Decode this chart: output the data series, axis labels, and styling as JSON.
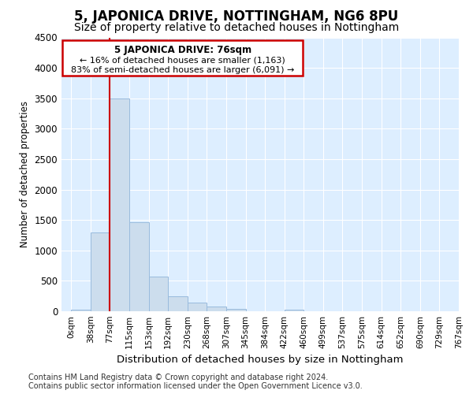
{
  "title": "5, JAPONICA DRIVE, NOTTINGHAM, NG6 8PU",
  "subtitle": "Size of property relative to detached houses in Nottingham",
  "xlabel": "Distribution of detached houses by size in Nottingham",
  "ylabel": "Number of detached properties",
  "footnote1": "Contains HM Land Registry data © Crown copyright and database right 2024.",
  "footnote2": "Contains public sector information licensed under the Open Government Licence v3.0.",
  "bin_labels": [
    "0sqm",
    "38sqm",
    "77sqm",
    "115sqm",
    "153sqm",
    "192sqm",
    "230sqm",
    "268sqm",
    "307sqm",
    "345sqm",
    "384sqm",
    "422sqm",
    "460sqm",
    "499sqm",
    "537sqm",
    "575sqm",
    "614sqm",
    "652sqm",
    "690sqm",
    "729sqm",
    "767sqm"
  ],
  "bar_heights": [
    30,
    1290,
    3500,
    1460,
    575,
    240,
    140,
    75,
    40,
    5,
    5,
    30,
    0,
    0,
    0,
    0,
    0,
    0,
    0,
    0
  ],
  "bar_color": "#ccdded",
  "bar_edge_color": "#99bbdd",
  "property_line_x": 2,
  "property_label": "5 JAPONICA DRIVE: 76sqm",
  "annotation_line1": "← 16% of detached houses are smaller (1,163)",
  "annotation_line2": "83% of semi-detached houses are larger (6,091) →",
  "annotation_box_color": "#cc0000",
  "ylim": [
    0,
    4500
  ],
  "yticks": [
    0,
    500,
    1000,
    1500,
    2000,
    2500,
    3000,
    3500,
    4000,
    4500
  ],
  "fig_bg_color": "#ffffff",
  "plot_bg_color": "#ddeeff",
  "grid_color": "#ffffff",
  "title_fontsize": 12,
  "subtitle_fontsize": 10,
  "footnote_fontsize": 7
}
